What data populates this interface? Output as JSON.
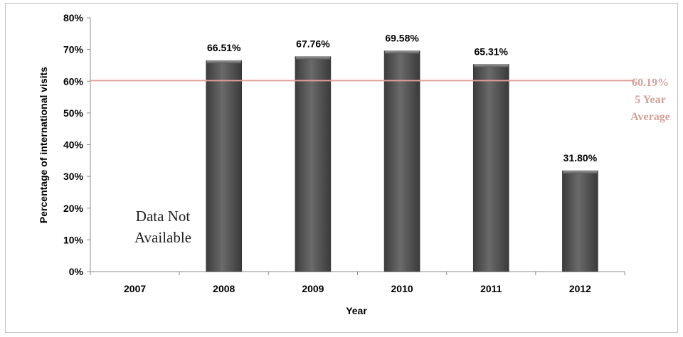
{
  "chart_data": {
    "type": "bar",
    "xlabel": "Year",
    "ylabel": "Percentage of international visits",
    "categories": [
      "2007",
      "2008",
      "2009",
      "2010",
      "2011",
      "2012"
    ],
    "values": [
      null,
      66.51,
      67.76,
      69.58,
      65.31,
      31.8
    ],
    "data_labels": [
      "",
      "66.51%",
      "67.76%",
      "69.58%",
      "65.31%",
      "31.80%"
    ],
    "ylim": [
      0,
      80
    ],
    "yticks": [
      "0%",
      "10%",
      "20%",
      "30%",
      "40%",
      "50%",
      "60%",
      "70%",
      "80%"
    ],
    "grid": false,
    "bar_color": "#595959",
    "reference_line": {
      "value": 60.19,
      "label": "60.19%",
      "label_line2": "5 Year",
      "label_line3": "Average",
      "color": "#e0a09a"
    },
    "annotation": {
      "line1": "Data Not",
      "line2": "Available"
    }
  }
}
